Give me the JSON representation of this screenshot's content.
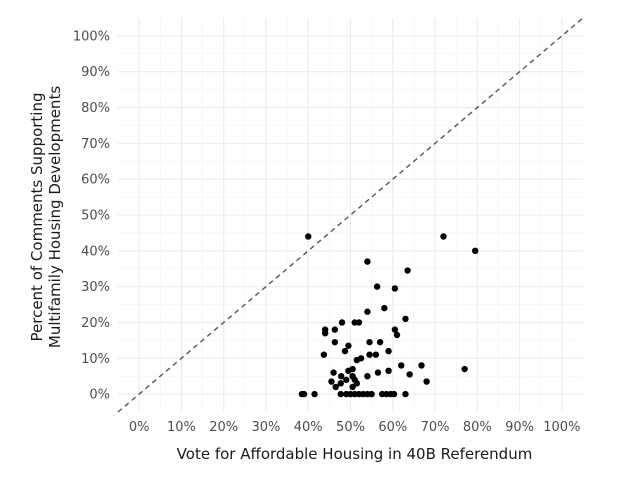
{
  "chart_data": {
    "type": "scatter",
    "xlabel": "Vote for Affordable Housing in 40B Referendum",
    "ylabel_lines": [
      "Percent of Comments Supporting",
      "Multifamily Housing Developments"
    ],
    "xlim": [
      -0.05,
      1.05
    ],
    "ylim": [
      -0.05,
      1.05
    ],
    "x_ticks": [
      0,
      0.1,
      0.2,
      0.3,
      0.4,
      0.5,
      0.6,
      0.7,
      0.8,
      0.9,
      1.0
    ],
    "x_tick_labels": [
      "0%",
      "10%",
      "20%",
      "30%",
      "40%",
      "50%",
      "60%",
      "70%",
      "80%",
      "90%",
      "100%"
    ],
    "y_ticks": [
      0,
      0.1,
      0.2,
      0.3,
      0.4,
      0.5,
      0.6,
      0.7,
      0.8,
      0.9,
      1.0
    ],
    "y_tick_labels": [
      "0%",
      "10%",
      "20%",
      "30%",
      "40%",
      "50%",
      "60%",
      "70%",
      "80%",
      "90%",
      "100%"
    ],
    "grid": true,
    "reference_line": "y = x (dashed)",
    "point_color": "#000000",
    "points": [
      [
        0.4,
        0.44
      ],
      [
        0.72,
        0.44
      ],
      [
        0.795,
        0.4
      ],
      [
        0.54,
        0.37
      ],
      [
        0.635,
        0.345
      ],
      [
        0.563,
        0.3
      ],
      [
        0.605,
        0.295
      ],
      [
        0.54,
        0.23
      ],
      [
        0.58,
        0.24
      ],
      [
        0.63,
        0.21
      ],
      [
        0.44,
        0.18
      ],
      [
        0.44,
        0.17
      ],
      [
        0.463,
        0.18
      ],
      [
        0.48,
        0.2
      ],
      [
        0.51,
        0.2
      ],
      [
        0.52,
        0.2
      ],
      [
        0.605,
        0.18
      ],
      [
        0.61,
        0.165
      ],
      [
        0.437,
        0.11
      ],
      [
        0.463,
        0.145
      ],
      [
        0.487,
        0.12
      ],
      [
        0.495,
        0.135
      ],
      [
        0.515,
        0.095
      ],
      [
        0.525,
        0.1
      ],
      [
        0.545,
        0.11
      ],
      [
        0.545,
        0.145
      ],
      [
        0.56,
        0.11
      ],
      [
        0.57,
        0.145
      ],
      [
        0.59,
        0.12
      ],
      [
        0.62,
        0.08
      ],
      [
        0.46,
        0.06
      ],
      [
        0.478,
        0.05
      ],
      [
        0.495,
        0.065
      ],
      [
        0.505,
        0.07
      ],
      [
        0.505,
        0.05
      ],
      [
        0.51,
        0.04
      ],
      [
        0.54,
        0.05
      ],
      [
        0.565,
        0.06
      ],
      [
        0.59,
        0.065
      ],
      [
        0.64,
        0.055
      ],
      [
        0.668,
        0.08
      ],
      [
        0.455,
        0.035
      ],
      [
        0.465,
        0.02
      ],
      [
        0.477,
        0.03
      ],
      [
        0.49,
        0.04
      ],
      [
        0.505,
        0.02
      ],
      [
        0.515,
        0.03
      ],
      [
        0.68,
        0.035
      ],
      [
        0.77,
        0.07
      ],
      [
        0.385,
        0.0
      ],
      [
        0.39,
        0.0
      ],
      [
        0.415,
        0.0
      ],
      [
        0.477,
        0.0
      ],
      [
        0.49,
        0.0
      ],
      [
        0.5,
        0.0
      ],
      [
        0.51,
        0.0
      ],
      [
        0.52,
        0.0
      ],
      [
        0.53,
        0.0
      ],
      [
        0.54,
        0.0
      ],
      [
        0.55,
        0.0
      ],
      [
        0.575,
        0.0
      ],
      [
        0.585,
        0.0
      ],
      [
        0.595,
        0.0
      ],
      [
        0.603,
        0.0
      ],
      [
        0.63,
        0.0
      ]
    ]
  }
}
